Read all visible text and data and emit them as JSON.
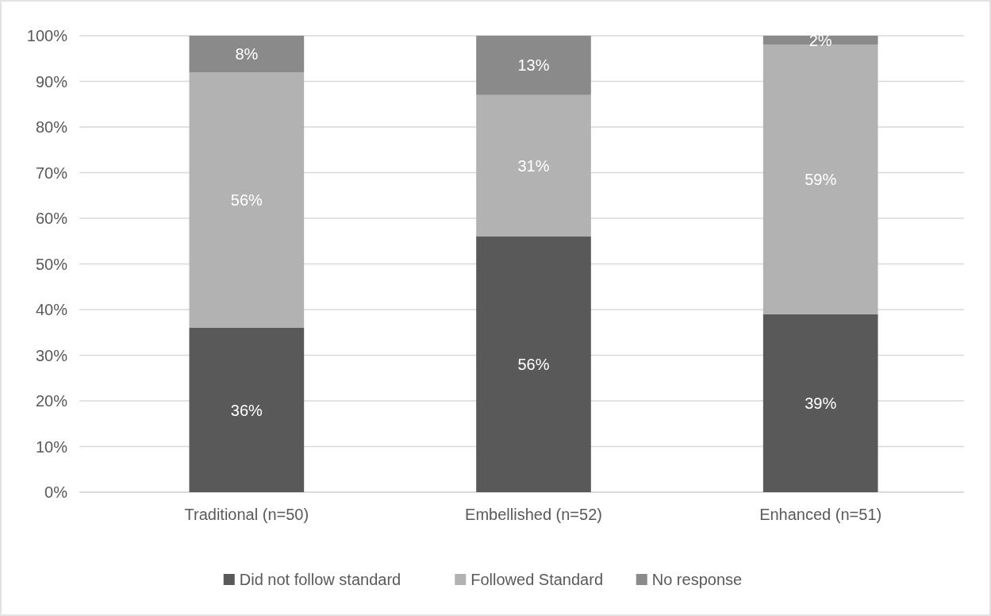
{
  "chart_data": {
    "type": "bar",
    "stacked": true,
    "categories": [
      "Traditional (n=50)",
      "Embellished (n=52)",
      "Enhanced (n=51)"
    ],
    "series": [
      {
        "name": "Did not follow standard",
        "color": "#595959",
        "values": [
          36,
          56,
          39
        ],
        "value_labels": [
          "36%",
          "56%",
          "39%"
        ]
      },
      {
        "name": "Followed Standard",
        "color": "#b2b2b2",
        "values": [
          56,
          31,
          59
        ],
        "value_labels": [
          "56%",
          "31%",
          "59%"
        ]
      },
      {
        "name": "No response",
        "color": "#8a8a8a",
        "values": [
          8,
          13,
          2
        ],
        "value_labels": [
          "8%",
          "13%",
          "2%"
        ]
      }
    ],
    "ylim": [
      0,
      100
    ],
    "yticks": [
      {
        "value": 0,
        "label": "0%"
      },
      {
        "value": 10,
        "label": "10%"
      },
      {
        "value": 20,
        "label": "20%"
      },
      {
        "value": 30,
        "label": "30%"
      },
      {
        "value": 40,
        "label": "40%"
      },
      {
        "value": 50,
        "label": "50%"
      },
      {
        "value": 60,
        "label": "60%"
      },
      {
        "value": 70,
        "label": "70%"
      },
      {
        "value": 80,
        "label": "80%"
      },
      {
        "value": 90,
        "label": "90%"
      },
      {
        "value": 100,
        "label": "100%"
      }
    ],
    "grid": "y",
    "legend": "bottom"
  }
}
